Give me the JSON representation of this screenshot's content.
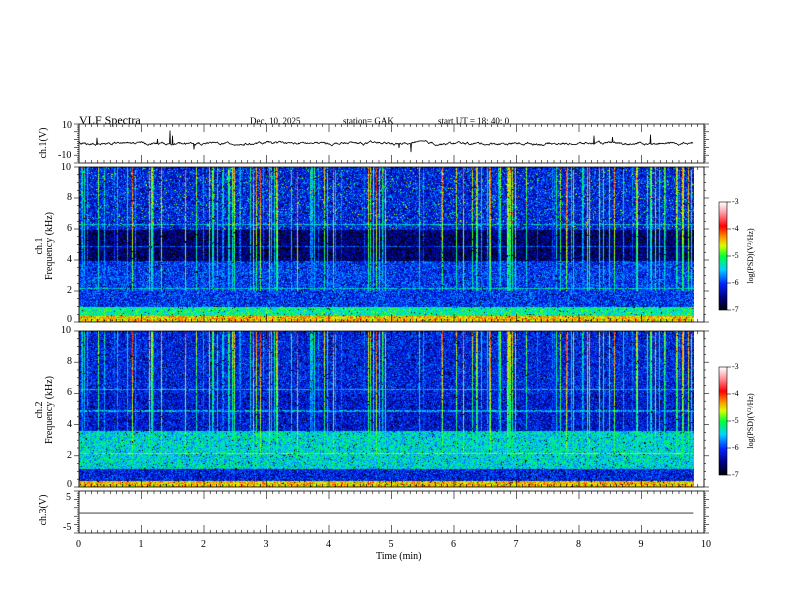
{
  "header": {
    "title": "VLF  Spectra",
    "date": "Dec. 10,  2025",
    "station": "station= GAK",
    "start": "start  UT  =    18: 40: 0"
  },
  "colors": {
    "trace": "#000000",
    "ch3_trace": "#555555",
    "axis": "#000000"
  },
  "chart_data": [
    {
      "type": "line",
      "name": "ch1 waveform",
      "ylabel": "ch.1(V)",
      "ylim": [
        -12,
        12
      ],
      "yticks": [
        "10",
        "-10"
      ],
      "xlim": [
        0,
        10
      ],
      "note": "noisy trace near 0 V with impulsive spikes"
    },
    {
      "type": "heatmap",
      "name": "ch1 spectrogram",
      "ylabel_line1": "ch.1",
      "ylabel_line2": "Frequency  (kHz)",
      "ylim": [
        0,
        10
      ],
      "yticks": [
        "0",
        "2",
        "4",
        "6",
        "8",
        "10"
      ],
      "xlim": [
        0,
        9.83
      ],
      "colorbar": {
        "label": "log(PSD)(V²/Hz)",
        "range": [
          -7,
          -3
        ],
        "ticks": [
          "-3",
          "-4",
          "-5",
          "-6",
          "-7"
        ]
      }
    },
    {
      "type": "heatmap",
      "name": "ch2 spectrogram",
      "ylabel_line1": "ch.2",
      "ylabel_line2": "Frequency  (kHz)",
      "ylim": [
        0,
        10
      ],
      "yticks": [
        "0",
        "2",
        "4",
        "6",
        "8",
        "10"
      ],
      "xlim": [
        0,
        9.83
      ],
      "colorbar": {
        "label": "log(PSD)(V²/Hz)",
        "range": [
          -7,
          -3
        ],
        "ticks": [
          "-3",
          "-4",
          "-5",
          "-6",
          "-7"
        ]
      }
    },
    {
      "type": "line",
      "name": "ch3 waveform",
      "ylabel": "ch.3(V)",
      "ylim": [
        -6,
        6
      ],
      "yticks": [
        "5",
        "-5"
      ],
      "x": [
        0,
        9.83
      ],
      "y": [
        -0.3,
        -0.3
      ]
    }
  ],
  "xaxis": {
    "label": "Time  (min)",
    "ticks": [
      "0",
      "1",
      "2",
      "3",
      "4",
      "5",
      "6",
      "7",
      "8",
      "9",
      "10"
    ],
    "range": [
      0,
      10
    ]
  }
}
